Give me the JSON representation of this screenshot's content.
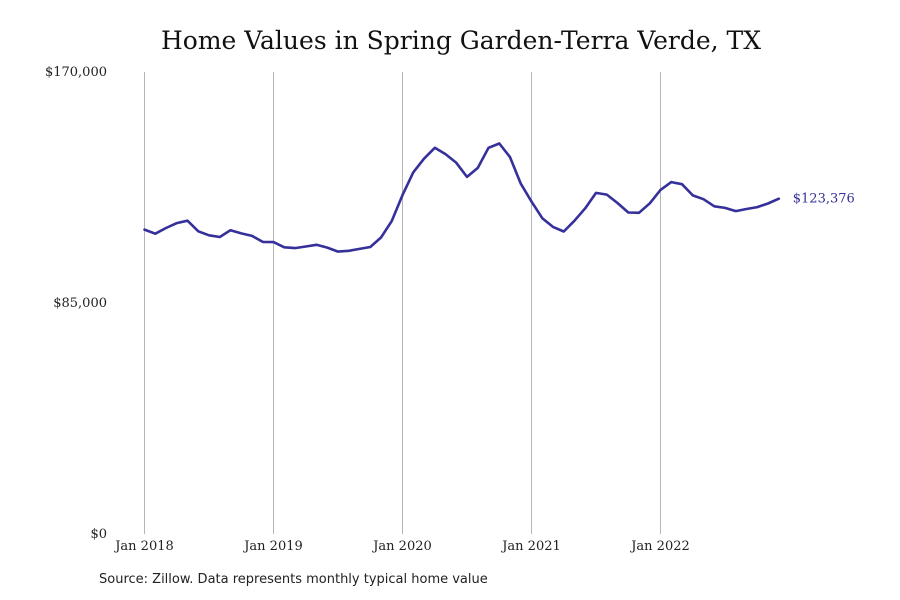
{
  "chart_data": {
    "type": "line",
    "title": "Home Values in Spring Garden-Terra Verde, TX",
    "xlabel": "",
    "ylabel": "",
    "ylim": [
      0,
      170000
    ],
    "y_ticks": [
      "$0",
      "$85,000",
      "$170,000"
    ],
    "y_tick_values": [
      0,
      85000,
      170000
    ],
    "x_tick_labels": [
      "Jan 2018",
      "Jan 2019",
      "Jan 2020",
      "Jan 2021",
      "Jan 2022"
    ],
    "grid": "vertical",
    "x": [
      "2018-01",
      "2018-02",
      "2018-03",
      "2018-04",
      "2018-05",
      "2018-06",
      "2018-07",
      "2018-08",
      "2018-09",
      "2018-10",
      "2018-11",
      "2018-12",
      "2019-01",
      "2019-02",
      "2019-03",
      "2019-04",
      "2019-05",
      "2019-06",
      "2019-07",
      "2019-08",
      "2019-09",
      "2019-10",
      "2019-11",
      "2019-12",
      "2020-01",
      "2020-02",
      "2020-03",
      "2020-04",
      "2020-05",
      "2020-06",
      "2020-07",
      "2020-08",
      "2020-09",
      "2020-10",
      "2020-11",
      "2020-12",
      "2021-01",
      "2021-02",
      "2021-03",
      "2021-04",
      "2021-05",
      "2021-06",
      "2021-07",
      "2021-08",
      "2021-09",
      "2021-10",
      "2021-11",
      "2021-12",
      "2022-01",
      "2022-02",
      "2022-03",
      "2022-04",
      "2022-05",
      "2022-06",
      "2022-07",
      "2022-08",
      "2022-09",
      "2022-10",
      "2022-11",
      "2022-12"
    ],
    "series": [
      {
        "color": "#35309a",
        "values": [
          112000,
          110500,
          112600,
          114400,
          115300,
          111400,
          109900,
          109300,
          111800,
          110600,
          109700,
          107500,
          107400,
          105500,
          105200,
          105800,
          106400,
          105400,
          103900,
          104200,
          104900,
          105600,
          109100,
          115200,
          124700,
          133100,
          138100,
          142100,
          139800,
          136600,
          131400,
          134700,
          142100,
          143700,
          138700,
          128900,
          122300,
          116200,
          113000,
          111300,
          115300,
          119900,
          125500,
          124900,
          121800,
          118300,
          118200,
          121700,
          126600,
          129500,
          128700,
          124600,
          123200,
          120600,
          120000,
          118800,
          119600,
          120300,
          121600,
          123376
        ]
      }
    ],
    "end_value_label": "$123,376",
    "source_note": "Source: Zillow. Data represents monthly typical home value"
  }
}
